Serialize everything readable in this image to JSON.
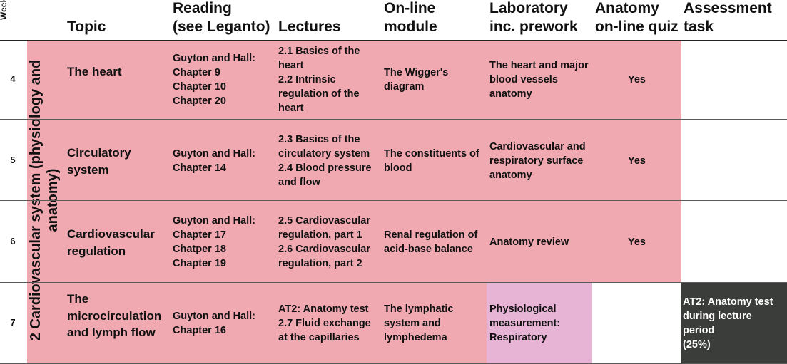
{
  "headers": {
    "week": "Week",
    "topic": "Topic",
    "reading": "Reading\n(see Leganto)",
    "lectures": "Lectures",
    "online_module": "On-line\nmodule",
    "laboratory": "Laboratory\ninc. prework",
    "anatomy_quiz": "Anatomy\non-line quiz",
    "assessment": "Assessment\ntask"
  },
  "module_label": "2 Cardiovascular system\n(physiology and anatomy)",
  "rows": [
    {
      "week": "4",
      "topic": "The heart",
      "reading": "Guyton and Hall:\nChapter 9\nChapter 10\nChapter 20",
      "lectures": "2.1 Basics of the\nheart\n2.2 Intrinsic\nregulation of the\nheart",
      "online_module": "The Wigger's\ndiagram",
      "laboratory": "The heart and major\nblood vessels\nanatomy",
      "quiz": "Yes",
      "assessment": ""
    },
    {
      "week": "5",
      "topic": "Circulatory\nsystem",
      "reading": "Guyton and Hall:\nChapter 14",
      "lectures": "2.3 Basics of the\ncirculatory system\n2.4 Blood pressure\nand flow",
      "online_module": "The constituents of\nblood",
      "laboratory": "Cardiovascular and\nrespiratory surface\nanatomy",
      "quiz": "Yes",
      "assessment": ""
    },
    {
      "week": "6",
      "topic": "Cardiovascular\nregulation",
      "reading": "Guyton and Hall:\nChapter 17\nChatper 18\nChapter 19",
      "lectures": "2.5 Cardiovascular\nregulation, part 1\n2.6 Cardiovascular\nregulation, part 2",
      "online_module": "Renal regulation of\nacid-base balance",
      "laboratory": "Anatomy review",
      "quiz": "Yes",
      "assessment": ""
    },
    {
      "week": "7",
      "topic": "The\nmicrocirculation\nand lymph flow",
      "reading": "Guyton and Hall:\nChapter 16",
      "lectures": "AT2: Anatomy test\n2.7 Fluid exchange\nat the capillaries",
      "online_module": "The lymphatic\nsystem and\nlymphedema",
      "laboratory": "Physiological\nmeasurement:\nRespiratory",
      "quiz": "",
      "assessment": "AT2: Anatomy test\nduring lecture\nperiod\n (25%)"
    }
  ],
  "colors": {
    "row_pink": "#f0a8b1",
    "lab_highlight": "#e8b4d6",
    "assessment_dark": "#3b3d3a"
  }
}
